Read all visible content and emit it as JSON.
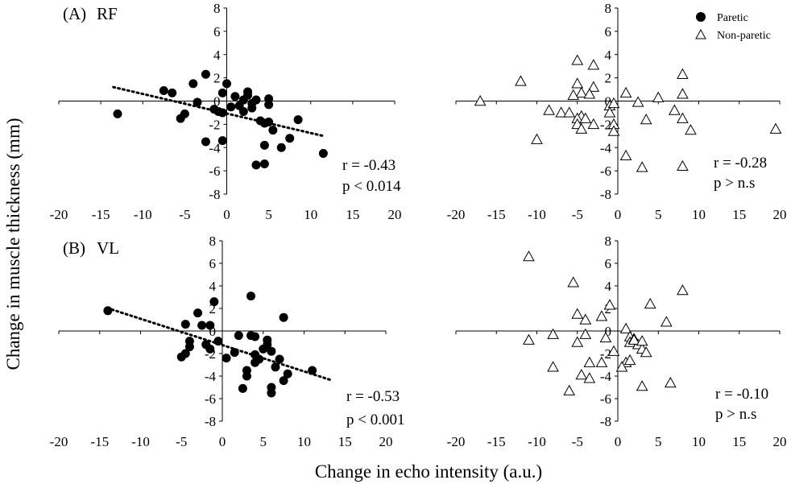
{
  "figure": {
    "ylabel": "Change in muscle thickness (mm)",
    "xlabel": "Change in echo intensity (a.u.)",
    "legend": [
      {
        "name": "Paretic",
        "marker": "filled-circle"
      },
      {
        "name": "Non-paretic",
        "marker": "open-triangle"
      }
    ],
    "colors": {
      "marker": "#000000",
      "background": "#ffffff"
    }
  },
  "chart_data": [
    {
      "type": "scatter",
      "panel_label": "(A)",
      "muscle": "RF",
      "series_name": "Paretic",
      "marker": "filled-circle",
      "xlim": [
        -20,
        20
      ],
      "ylim": [
        -8,
        8
      ],
      "xticks": [
        "-20",
        "-15",
        "-10",
        "-5",
        "0",
        "5",
        "10",
        "15",
        "20"
      ],
      "yticks": [
        "8",
        "6",
        "4",
        "2",
        "0",
        "-2",
        "-4",
        "-6",
        "-8"
      ],
      "stat_r": "r = -0.43",
      "stat_p": "p < 0.014",
      "trendline": {
        "x": [
          -13.5,
          11.5
        ],
        "y": [
          1.2,
          -3.0
        ]
      },
      "points": [
        [
          -13,
          -1.1
        ],
        [
          -7.5,
          0.9
        ],
        [
          -6.5,
          0.7
        ],
        [
          -4,
          1.5
        ],
        [
          -2.5,
          2.3
        ],
        [
          -3.5,
          -0.1
        ],
        [
          -5.5,
          -1.5
        ],
        [
          -5,
          -1.1
        ],
        [
          -1.5,
          -0.7
        ],
        [
          -0.5,
          0.7
        ],
        [
          0,
          1.5
        ],
        [
          0.5,
          -0.5
        ],
        [
          -1,
          -0.9
        ],
        [
          -0.5,
          -1.0
        ],
        [
          1,
          0.4
        ],
        [
          1.5,
          -0.4
        ],
        [
          2,
          0.1
        ],
        [
          2.5,
          0.5
        ],
        [
          2.5,
          0.8
        ],
        [
          3,
          -0.2
        ],
        [
          3,
          -0.6
        ],
        [
          3.5,
          0.1
        ],
        [
          2,
          -0.9
        ],
        [
          4,
          -1.7
        ],
        [
          4.5,
          -1.9
        ],
        [
          5,
          -1.8
        ],
        [
          5.5,
          -2.5
        ],
        [
          5,
          0.2
        ],
        [
          5,
          -0.3
        ],
        [
          4.5,
          -3.8
        ],
        [
          6.5,
          -4.0
        ],
        [
          7.5,
          -3.2
        ],
        [
          8.5,
          -1.6
        ],
        [
          11.5,
          -4.5
        ],
        [
          3.5,
          -5.5
        ],
        [
          4.5,
          -5.4
        ],
        [
          -2.5,
          -3.5
        ],
        [
          -0.5,
          -3.4
        ]
      ]
    },
    {
      "type": "scatter",
      "panel_label": "",
      "muscle": "",
      "series_name": "Non-paretic",
      "marker": "open-triangle",
      "xlim": [
        -20,
        20
      ],
      "ylim": [
        -8,
        8
      ],
      "xticks": [
        "-20",
        "-15",
        "-10",
        "-5",
        "0",
        "5",
        "10",
        "15",
        "20"
      ],
      "yticks": [
        "8",
        "6",
        "4",
        "2",
        "0",
        "-2",
        "-4",
        "-6",
        "-8"
      ],
      "stat_r": "r = -0.28",
      "stat_p": "p > n.s",
      "points": [
        [
          -17,
          0.0
        ],
        [
          -12,
          1.7
        ],
        [
          -8.5,
          -0.8
        ],
        [
          -10,
          -3.3
        ],
        [
          -7,
          -1.0
        ],
        [
          -5,
          3.5
        ],
        [
          -5,
          1.5
        ],
        [
          -4.5,
          0.7
        ],
        [
          -5.5,
          0.5
        ],
        [
          -3,
          3.1
        ],
        [
          -3,
          1.2
        ],
        [
          -3.5,
          0.6
        ],
        [
          -4.5,
          -1.3
        ],
        [
          -5,
          -1.5
        ],
        [
          -6,
          -1.0
        ],
        [
          -5,
          -2.0
        ],
        [
          -4.5,
          -2.4
        ],
        [
          -3,
          -2.0
        ],
        [
          -4,
          -1.5
        ],
        [
          -1,
          -0.4
        ],
        [
          -0.5,
          -0.2
        ],
        [
          -1,
          -1.0
        ],
        [
          -0.5,
          -2.0
        ],
        [
          -0.5,
          -2.6
        ],
        [
          1,
          0.7
        ],
        [
          2.5,
          -0.1
        ],
        [
          5,
          0.3
        ],
        [
          8,
          0.6
        ],
        [
          8,
          2.3
        ],
        [
          7,
          -0.8
        ],
        [
          8,
          -1.5
        ],
        [
          9,
          -2.5
        ],
        [
          3.5,
          -1.6
        ],
        [
          1,
          -4.7
        ],
        [
          3,
          -5.7
        ],
        [
          8,
          -5.6
        ],
        [
          19.5,
          -2.4
        ]
      ]
    },
    {
      "type": "scatter",
      "panel_label": "(B)",
      "muscle": "VL",
      "series_name": "Paretic",
      "marker": "filled-circle",
      "xlim": [
        -20,
        20
      ],
      "ylim": [
        -8,
        8
      ],
      "xticks": [
        "-20",
        "-15",
        "-10",
        "-5",
        "0",
        "5",
        "10",
        "15",
        "20"
      ],
      "yticks": [
        "8",
        "6",
        "4",
        "2",
        "0",
        "-2",
        "-4",
        "-6",
        "-8"
      ],
      "stat_r": "r = -0.53",
      "stat_p": "p < 0.001",
      "trendline": {
        "x": [
          -13.5,
          13.5
        ],
        "y": [
          1.9,
          -4.4
        ]
      },
      "points": [
        [
          -14,
          1.8
        ],
        [
          -4.5,
          0.6
        ],
        [
          -3,
          1.6
        ],
        [
          -2.5,
          0.5
        ],
        [
          -1.5,
          0.5
        ],
        [
          -1,
          2.6
        ],
        [
          -4,
          -0.9
        ],
        [
          -4,
          -1.4
        ],
        [
          -4.5,
          -2.0
        ],
        [
          -5,
          -2.3
        ],
        [
          -2,
          -1.2
        ],
        [
          -1.5,
          -1.6
        ],
        [
          -0.5,
          -0.9
        ],
        [
          0.5,
          -2.4
        ],
        [
          1.5,
          -1.9
        ],
        [
          2,
          -0.4
        ],
        [
          3.5,
          -0.4
        ],
        [
          4,
          -0.5
        ],
        [
          4,
          -2.1
        ],
        [
          5,
          -1.6
        ],
        [
          5.5,
          -0.8
        ],
        [
          5.5,
          -1.2
        ],
        [
          6,
          -1.8
        ],
        [
          4.5,
          -2.5
        ],
        [
          6.5,
          -3.2
        ],
        [
          7,
          -2.5
        ],
        [
          7.5,
          1.2
        ],
        [
          8,
          -3.8
        ],
        [
          6,
          -5.0
        ],
        [
          6,
          -5.5
        ],
        [
          3,
          -4.0
        ],
        [
          3,
          -3.5
        ],
        [
          2.5,
          -5.1
        ],
        [
          7.5,
          -4.4
        ],
        [
          11,
          -3.5
        ],
        [
          3.5,
          3.1
        ],
        [
          4,
          -2.8
        ]
      ]
    },
    {
      "type": "scatter",
      "panel_label": "",
      "muscle": "",
      "series_name": "Non-paretic",
      "marker": "open-triangle",
      "xlim": [
        -20,
        20
      ],
      "ylim": [
        -8,
        8
      ],
      "xticks": [
        "-20",
        "-15",
        "-10",
        "-5",
        "0",
        "5",
        "10",
        "15",
        "20"
      ],
      "yticks": [
        "8",
        "6",
        "4",
        "2",
        "0",
        "-2",
        "-4",
        "-6",
        "-8"
      ],
      "stat_r": "r = -0.10",
      "stat_p": "p > n.s",
      "points": [
        [
          -11,
          6.6
        ],
        [
          -11,
          -0.8
        ],
        [
          -8,
          -0.3
        ],
        [
          -8,
          -3.2
        ],
        [
          -6,
          -5.3
        ],
        [
          -5.5,
          4.3
        ],
        [
          -5,
          1.5
        ],
        [
          -5,
          -1.0
        ],
        [
          -4,
          1.0
        ],
        [
          -4,
          -0.3
        ],
        [
          -4.5,
          -3.9
        ],
        [
          -3.5,
          -4.2
        ],
        [
          -3.5,
          -2.8
        ],
        [
          -2,
          1.3
        ],
        [
          -1.5,
          -0.6
        ],
        [
          -2,
          -2.8
        ],
        [
          -1,
          2.3
        ],
        [
          -0.5,
          -1.8
        ],
        [
          1,
          0.2
        ],
        [
          1.5,
          -0.5
        ],
        [
          1.5,
          -1.0
        ],
        [
          2,
          -0.7
        ],
        [
          2.5,
          -1.2
        ],
        [
          3,
          -1.6
        ],
        [
          3.5,
          -1.9
        ],
        [
          1,
          -2.8
        ],
        [
          0.5,
          -3.2
        ],
        [
          1.5,
          -2.6
        ],
        [
          3,
          -4.9
        ],
        [
          4,
          2.4
        ],
        [
          6,
          0.8
        ],
        [
          6.5,
          -4.6
        ],
        [
          8,
          3.6
        ],
        [
          2,
          -0.8
        ],
        [
          3,
          -0.9
        ]
      ]
    }
  ]
}
